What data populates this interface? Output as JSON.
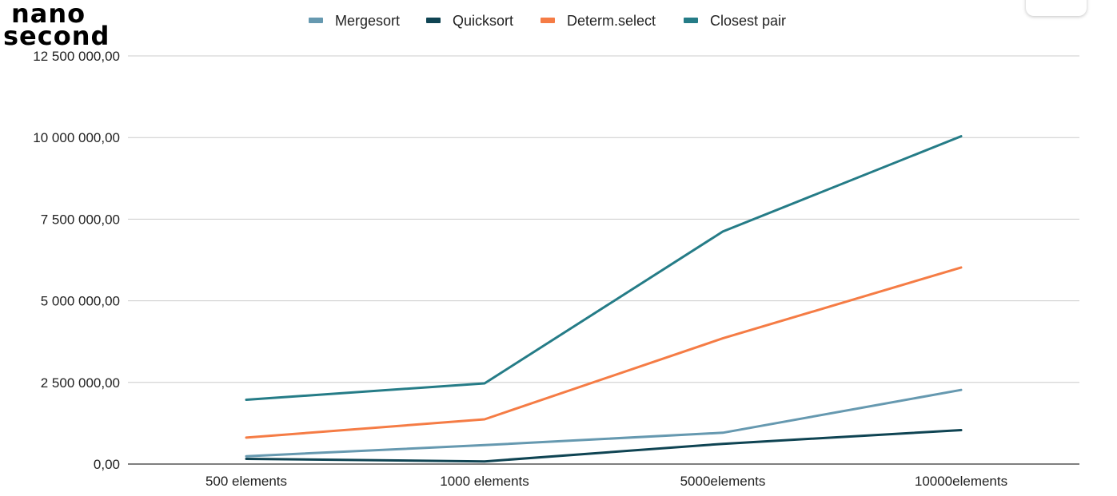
{
  "unit_note": {
    "line1": "nano",
    "line2": "second"
  },
  "chart_data": {
    "type": "line",
    "categories": [
      "500 elements",
      "1000 elements",
      "5000elements",
      "10000elements"
    ],
    "series": [
      {
        "name": "Mergesort",
        "color": "#6699b0",
        "values": [
          240000,
          580000,
          960000,
          2270000
        ]
      },
      {
        "name": "Quicksort",
        "color": "#0f4453",
        "values": [
          160000,
          80000,
          620000,
          1040000
        ]
      },
      {
        "name": "Determ.select",
        "color": "#f57c45",
        "values": [
          810000,
          1370000,
          3850000,
          6020000
        ]
      },
      {
        "name": "Closest pair",
        "color": "#257c87",
        "values": [
          1970000,
          2470000,
          7120000,
          10040000
        ]
      }
    ],
    "ylim": [
      0,
      12500000
    ],
    "yticks": [
      0,
      2500000,
      5000000,
      7500000,
      10000000,
      12500000
    ],
    "ytick_labels": [
      "0,00",
      "2 500 000,00",
      "5 000 000,00",
      "7 500 000,00",
      "10 000 000,00",
      "12 500 000,00"
    ],
    "grid": true,
    "legend_position": "top-center"
  }
}
